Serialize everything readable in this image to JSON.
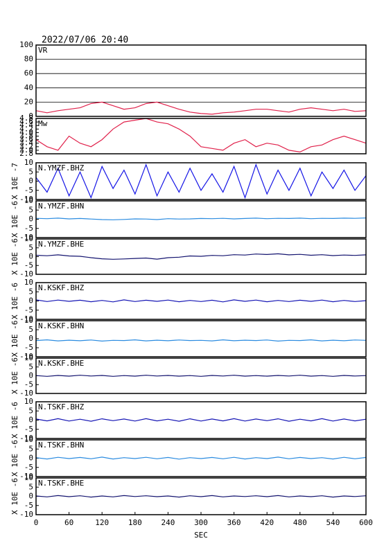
{
  "chart_data": {
    "type": "line",
    "title": "2022/07/06 20:40",
    "x": [
      0,
      20,
      40,
      60,
      80,
      100,
      120,
      140,
      160,
      180,
      200,
      220,
      240,
      260,
      280,
      300,
      320,
      340,
      360,
      380,
      400,
      420,
      440,
      460,
      480,
      500,
      520,
      540,
      560,
      580,
      600
    ],
    "xlim": [
      0,
      600
    ],
    "xticks": [
      0,
      60,
      120,
      180,
      240,
      300,
      360,
      420,
      480,
      540,
      600
    ],
    "xlabel": "SEC",
    "series": [
      {
        "name": "VR",
        "color": "#e0204a",
        "ylim": [
          0,
          100
        ],
        "yticks": [
          0,
          20,
          40,
          60,
          80,
          100
        ],
        "grid": true,
        "values": [
          8,
          5,
          8,
          10,
          12,
          18,
          20,
          15,
          10,
          12,
          18,
          20,
          15,
          10,
          6,
          4,
          3,
          5,
          6,
          8,
          10,
          10,
          8,
          6,
          10,
          12,
          10,
          8,
          10,
          7,
          8
        ]
      },
      {
        "name": "Mw",
        "color": "#e0204a",
        "ylim": [
          2.8,
          4.8
        ],
        "yticks": [
          2.8,
          {
            "value": 3,
            "label": "3.0"
          },
          3.2,
          3.4,
          3.6,
          3.8,
          {
            "value": 4,
            "label": "4.0"
          },
          4.2,
          4.4,
          4.6,
          4.8
        ],
        "grid": false,
        "values": [
          3.6,
          3.2,
          3.0,
          3.8,
          3.4,
          3.2,
          3.6,
          4.2,
          4.6,
          4.7,
          4.8,
          4.6,
          4.5,
          4.2,
          3.8,
          3.2,
          3.1,
          3.0,
          3.4,
          3.6,
          3.2,
          3.4,
          3.3,
          3.0,
          2.9,
          3.2,
          3.3,
          3.6,
          3.8,
          3.6,
          3.4
        ]
      },
      {
        "name": "N.YMZF.BHZ",
        "ylabel": "X 10E -7",
        "color": "#1414e6",
        "ylim": [
          -10,
          10
        ],
        "yticks": [
          -10,
          -5,
          0,
          5,
          10
        ],
        "grid": false,
        "values": [
          2,
          -6,
          7,
          -8,
          5,
          -9,
          8,
          -4,
          6,
          -7,
          9,
          -8,
          5,
          -6,
          7,
          -5,
          4,
          -6,
          8,
          -9,
          9,
          -7,
          6,
          -5,
          7,
          -8,
          5,
          -4,
          6,
          -5,
          3
        ]
      },
      {
        "name": "N.YMZF.BHN",
        "ylabel": "X 10E -6",
        "color": "#2a8be0",
        "ylim": [
          -10,
          10
        ],
        "yticks": [
          -10,
          -5,
          0,
          5,
          10
        ],
        "grid": false,
        "values": [
          0.5,
          0.3,
          0.6,
          0.2,
          0.4,
          0.1,
          -0.2,
          -0.3,
          -0.1,
          0.2,
          0.1,
          -0.2,
          0.3,
          0.1,
          0.2,
          0.4,
          0.3,
          0.5,
          0.2,
          0.4,
          0.6,
          0.3,
          0.5,
          0.4,
          0.6,
          0.3,
          0.5,
          0.4,
          0.6,
          0.5,
          0.7
        ]
      },
      {
        "name": "N.YMZF.BHE",
        "ylabel": "X 10E -6",
        "color": "#12126e",
        "ylim": [
          -10,
          10
        ],
        "yticks": [
          -10,
          -5,
          0,
          5,
          10
        ],
        "grid": false,
        "values": [
          0.8,
          0.5,
          1.0,
          0.4,
          0.2,
          -0.6,
          -1.2,
          -1.5,
          -1.3,
          -1.0,
          -0.8,
          -1.4,
          -0.6,
          -0.3,
          0.4,
          0.2,
          0.7,
          0.5,
          1.1,
          0.9,
          1.5,
          1.2,
          1.6,
          1.0,
          1.3,
          0.8,
          1.1,
          0.6,
          0.9,
          0.7,
          1.0
        ]
      },
      {
        "name": "N.KSKF.BHZ",
        "ylabel": "X 10E -6",
        "color": "#1414b4",
        "ylim": [
          -10,
          10
        ],
        "yticks": [
          -10,
          -5,
          0,
          5,
          10
        ],
        "grid": false,
        "values": [
          0.6,
          -0.3,
          0.5,
          -0.2,
          0.4,
          -0.4,
          0.3,
          -0.5,
          0.6,
          -0.3,
          0.4,
          -0.2,
          0.5,
          -0.4,
          0.3,
          -0.3,
          0.4,
          -0.5,
          0.6,
          -0.2,
          0.5,
          -0.4,
          0.3,
          -0.3,
          0.4,
          -0.2,
          0.5,
          -0.4,
          0.3,
          -0.3,
          0.2
        ]
      },
      {
        "name": "N.KSKF.BHN",
        "ylabel": "X 10E -6",
        "color": "#2a8be0",
        "ylim": [
          -10,
          10
        ],
        "yticks": [
          -10,
          -5,
          0,
          5,
          10
        ],
        "grid": false,
        "values": [
          -1.0,
          -0.6,
          -1.2,
          -0.8,
          -1.1,
          -0.7,
          -1.3,
          -0.9,
          -1.0,
          -0.6,
          -1.2,
          -0.8,
          -1.1,
          -0.7,
          -1.0,
          -0.9,
          -1.2,
          -0.6,
          -1.1,
          -0.8,
          -1.0,
          -0.7,
          -1.3,
          -0.9,
          -1.0,
          -0.6,
          -1.2,
          -0.8,
          -1.1,
          -0.7,
          -0.9
        ]
      },
      {
        "name": "N.KSKF.BHE",
        "ylabel": "X 10E -6",
        "color": "#12126e",
        "ylim": [
          -10,
          10
        ],
        "yticks": [
          -10,
          -5,
          0,
          5,
          10
        ],
        "grid": false,
        "values": [
          0.1,
          -0.3,
          0.2,
          -0.2,
          0.3,
          -0.1,
          0.2,
          -0.3,
          0.1,
          -0.2,
          0.3,
          -0.1,
          0.2,
          -0.2,
          0.1,
          -0.3,
          0.2,
          -0.1,
          0.3,
          -0.2,
          0.1,
          -0.2,
          0.2,
          -0.1,
          0.3,
          -0.2,
          0.1,
          -0.3,
          0.2,
          -0.1,
          0.1
        ]
      },
      {
        "name": "N.TSKF.BHZ",
        "ylabel": "X 10E -6",
        "color": "#1414b4",
        "ylim": [
          -10,
          10
        ],
        "yticks": [
          -10,
          -5,
          0,
          5,
          10
        ],
        "grid": false,
        "values": [
          0.6,
          -0.4,
          0.8,
          -0.5,
          0.5,
          -0.6,
          0.7,
          -0.3,
          0.6,
          -0.5,
          0.8,
          -0.4,
          0.5,
          -0.6,
          0.7,
          -0.5,
          0.6,
          -0.4,
          0.8,
          -0.5,
          0.6,
          -0.3,
          0.7,
          -0.6,
          0.5,
          -0.4,
          0.8,
          -0.5,
          0.6,
          -0.4,
          0.5
        ]
      },
      {
        "name": "N.TSKF.BHN",
        "ylabel": "X 10E -6",
        "color": "#2a8be0",
        "ylim": [
          -10,
          10
        ],
        "yticks": [
          -10,
          -5,
          0,
          5,
          10
        ],
        "grid": false,
        "values": [
          0.3,
          -0.4,
          0.5,
          -0.2,
          0.4,
          -0.3,
          0.6,
          -0.4,
          0.3,
          -0.2,
          0.5,
          -0.3,
          0.4,
          -0.5,
          0.3,
          -0.2,
          0.4,
          -0.3,
          0.5,
          -0.4,
          0.3,
          -0.2,
          0.6,
          -0.3,
          0.4,
          -0.2,
          0.3,
          -0.4,
          0.5,
          -0.3,
          0.4
        ]
      },
      {
        "name": "N.TSKF.BHE",
        "ylabel": "X 10E -6",
        "color": "#12126e",
        "ylim": [
          -10,
          10
        ],
        "yticks": [
          -10,
          -5,
          0,
          5,
          10
        ],
        "grid": false,
        "values": [
          0.2,
          -0.3,
          0.4,
          -0.2,
          0.3,
          -0.4,
          0.2,
          -0.3,
          0.4,
          -0.1,
          0.3,
          -0.2,
          0.2,
          -0.4,
          0.3,
          -0.2,
          0.4,
          -0.3,
          0.2,
          -0.1,
          0.3,
          -0.2,
          0.4,
          -0.3,
          0.2,
          -0.2,
          0.3,
          -0.4,
          0.2,
          -0.1,
          0.3
        ]
      }
    ]
  }
}
